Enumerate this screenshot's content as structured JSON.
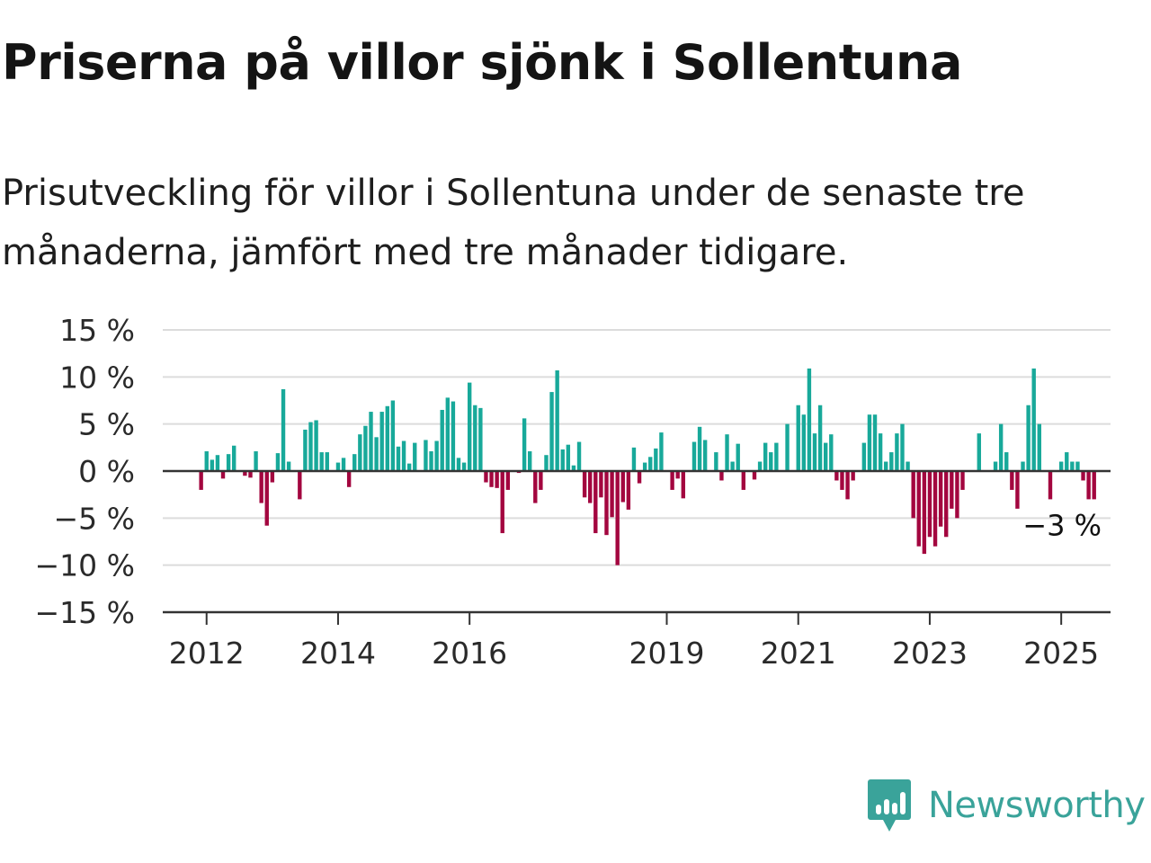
{
  "header": {
    "title": "Priserna på villor sjönk i Sollentuna",
    "subtitle": "Prisutveckling för villor i Sollentuna under de senaste tre månaderna, jämfört med tre månader tidigare."
  },
  "brand": {
    "name": "Newsworthy",
    "icon": "newsworthy-logo-icon",
    "color": "#3aa39a"
  },
  "colors": {
    "positive": "#18a99a",
    "negative": "#a3063f",
    "grid": "#dcdcdc",
    "axis": "#333333"
  },
  "chart_data": {
    "type": "bar",
    "ylim": [
      -15,
      15
    ],
    "y_ticks": [
      15,
      10,
      5,
      0,
      -5,
      -10,
      -15
    ],
    "y_tick_labels": [
      "15 %",
      "10 %",
      "5 %",
      "0 %",
      "−5 %",
      "−10 %",
      "−15 %"
    ],
    "x_range": [
      "2011-05",
      "2025-10"
    ],
    "x_ticks": [
      "2012",
      "2014",
      "2016",
      "2019",
      "2021",
      "2023",
      "2025"
    ],
    "grid": true,
    "end_label": "−3 %",
    "series": [
      {
        "start": "2011-12",
        "interval": "month",
        "values": [
          -2.0,
          2.1,
          1.2,
          1.7,
          -0.8,
          1.8,
          2.7,
          0.0,
          -0.5,
          -0.7,
          2.1,
          -3.4,
          -5.8,
          -1.2,
          1.9,
          8.7,
          1.0,
          0.0,
          -3.0,
          4.4,
          5.2,
          5.4,
          2.0,
          2.0,
          0.0,
          0.9,
          1.4,
          -1.7,
          1.8,
          3.9,
          4.8,
          6.3,
          3.6,
          6.3,
          6.9,
          7.5,
          2.6,
          3.2,
          0.8,
          3.0,
          0.0,
          3.3,
          2.1,
          3.2,
          6.5,
          7.8,
          7.4,
          1.4,
          0.9,
          9.4,
          7.0,
          6.7,
          -1.2,
          -1.7,
          -1.8,
          -6.6,
          -2.0,
          0.0,
          -0.2,
          5.6,
          2.1,
          -3.4,
          -2.0,
          1.7,
          8.4,
          10.7,
          2.3,
          2.8,
          0.6,
          3.1,
          -2.8,
          -3.4,
          -6.6,
          -2.8,
          -6.8,
          -4.9,
          -10.0,
          -3.3,
          -4.1,
          2.5,
          -1.3,
          0.9,
          1.5,
          2.4,
          4.1,
          0.0,
          -2.0,
          -0.8,
          -2.9,
          0.0,
          3.1,
          4.7,
          3.3,
          0.0,
          2.0,
          -1.0,
          3.9,
          1.0,
          2.9,
          -2.0,
          0.0,
          -0.9,
          1.0,
          3.0,
          2.0,
          3.0,
          0.0,
          5.0,
          0.0,
          7.0,
          6.0,
          10.9,
          4.0,
          7.0,
          3.0,
          3.9,
          -1.0,
          -2.0,
          -3.0,
          -1.0,
          0.0,
          3.0,
          6.0,
          6.0,
          4.0,
          1.0,
          2.0,
          4.0,
          5.0,
          1.0,
          -5.0,
          -8.0,
          -8.8,
          -7.0,
          -8.0,
          -5.9,
          -7.0,
          -4.0,
          -5.0,
          -2.0,
          0.0,
          0.0,
          4.0,
          0.0,
          0.0,
          1.0,
          5.0,
          2.0,
          -2.0,
          -4.0,
          1.0,
          7.0,
          10.9,
          5.0,
          0.0,
          -3.0,
          0.0,
          1.0,
          2.0,
          1.0,
          1.0,
          -1.0,
          -3.0,
          -3.0
        ]
      }
    ]
  }
}
